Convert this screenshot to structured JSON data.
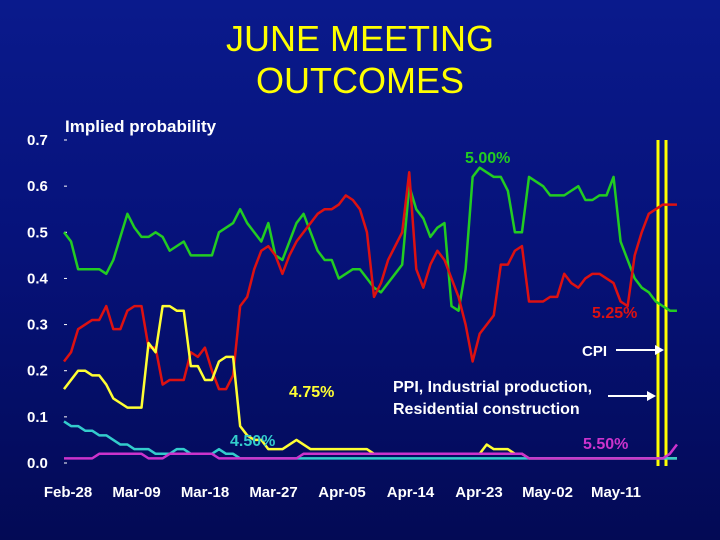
{
  "title_line1": "JUNE MEETING",
  "title_line2": "OUTCOMES",
  "colors": {
    "background": "#06127a",
    "title": "#ffff00",
    "axis_text": "#ffffff",
    "pct_500": "#22cc22",
    "pct_525": "#dd1111",
    "pct_475": "#ffff33",
    "pct_450": "#33cccc",
    "pct_550": "#cc33cc",
    "event_line": "#ffff00"
  },
  "chart_data": {
    "type": "line",
    "title": "JUNE MEETING OUTCOMES",
    "ylabel": "Implied probability",
    "xlabel": "",
    "ylim": [
      0.0,
      0.7
    ],
    "yticks": [
      "0.0",
      "0.1",
      "0.2",
      "0.3",
      "0.4",
      "0.5",
      "0.6",
      "0.7"
    ],
    "xticks": [
      "Feb-28",
      "Mar-09",
      "Mar-18",
      "Mar-27",
      "Apr-05",
      "Apr-14",
      "Apr-23",
      "May-02",
      "May-11"
    ],
    "xrange": [
      0,
      88
    ],
    "series": [
      {
        "name": "5.00%",
        "color": "#22cc22",
        "x": [
          0,
          1,
          2,
          3,
          4,
          5,
          6,
          7,
          8,
          9,
          10,
          11,
          12,
          13,
          14,
          15,
          16,
          17,
          18,
          19,
          20,
          21,
          22,
          23,
          24,
          25,
          26,
          27,
          28,
          29,
          30,
          31,
          32,
          33,
          34,
          35,
          36,
          37,
          38,
          39,
          40,
          41,
          42,
          43,
          44,
          45,
          46,
          47,
          48,
          49,
          50,
          51,
          52,
          53,
          54,
          55,
          56,
          57,
          58,
          59,
          60,
          61,
          62,
          63,
          64,
          65,
          66,
          67,
          68,
          69,
          70,
          71,
          72,
          73,
          74,
          75,
          76,
          77,
          78,
          79,
          80,
          81,
          82,
          83,
          84,
          85,
          86,
          87
        ],
        "values": [
          0.5,
          0.48,
          0.42,
          0.42,
          0.42,
          0.42,
          0.41,
          0.44,
          0.49,
          0.54,
          0.51,
          0.49,
          0.49,
          0.5,
          0.49,
          0.46,
          0.47,
          0.48,
          0.45,
          0.45,
          0.45,
          0.45,
          0.5,
          0.51,
          0.52,
          0.55,
          0.52,
          0.5,
          0.48,
          0.52,
          0.45,
          0.44,
          0.48,
          0.52,
          0.54,
          0.5,
          0.46,
          0.44,
          0.44,
          0.4,
          0.41,
          0.42,
          0.42,
          0.4,
          0.38,
          0.37,
          0.39,
          0.41,
          0.43,
          0.6,
          0.55,
          0.53,
          0.49,
          0.51,
          0.52,
          0.34,
          0.33,
          0.42,
          0.62,
          0.64,
          0.63,
          0.62,
          0.62,
          0.59,
          0.5,
          0.5,
          0.62,
          0.61,
          0.6,
          0.58,
          0.58,
          0.58,
          0.59,
          0.6,
          0.57,
          0.57,
          0.58,
          0.58,
          0.62,
          0.48,
          0.44,
          0.4,
          0.38,
          0.37,
          0.35,
          0.34,
          0.33,
          0.33
        ],
        "label": "5.00%"
      },
      {
        "name": "5.25%",
        "color": "#dd1111",
        "label": "5.25%"
      },
      {
        "name": "4.75%",
        "color": "#ffff33",
        "label": "4.75%"
      },
      {
        "name": "4.50%",
        "color": "#33cccc",
        "label": "4.50%"
      },
      {
        "name": "5.50%",
        "color": "#cc33cc",
        "label": "5.50%"
      }
    ],
    "annotations": [
      {
        "text": "CPI",
        "color": "#ffffff"
      },
      {
        "text": "PPI, Industrial production,",
        "color": "#ffffff"
      },
      {
        "text": "Residential construction",
        "color": "#ffffff"
      }
    ]
  }
}
